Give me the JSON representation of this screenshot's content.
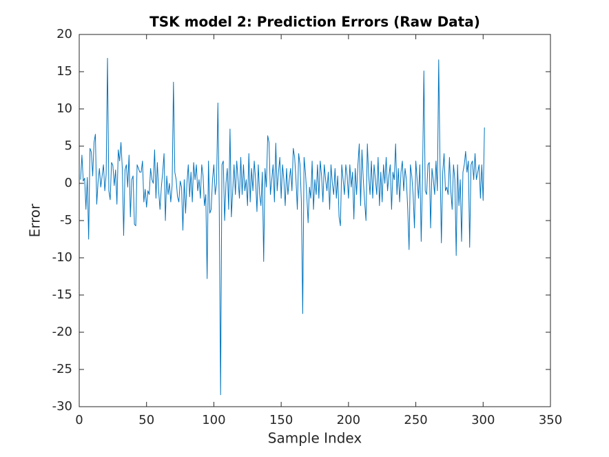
{
  "chart_data": {
    "type": "line",
    "title": "TSK model 2: Prediction Errors (Raw Data)",
    "x_label": "Sample Index",
    "y_label": "Error",
    "color": "#0072bd",
    "x": [
      1,
      2,
      3,
      4,
      5,
      6,
      7,
      8,
      9,
      10,
      11,
      12,
      13,
      14,
      15,
      16,
      17,
      18,
      19,
      20,
      21,
      22,
      23,
      24,
      25,
      26,
      27,
      28,
      29,
      30,
      31,
      32,
      33,
      34,
      35,
      36,
      37,
      38,
      39,
      40,
      41,
      42,
      43,
      44,
      45,
      46,
      47,
      48,
      49,
      50,
      51,
      52,
      53,
      54,
      55,
      56,
      57,
      58,
      59,
      60,
      61,
      62,
      63,
      64,
      65,
      66,
      67,
      68,
      69,
      70,
      71,
      72,
      73,
      74,
      75,
      76,
      77,
      78,
      79,
      80,
      81,
      82,
      83,
      84,
      85,
      86,
      87,
      88,
      89,
      90,
      91,
      92,
      93,
      94,
      95,
      96,
      97,
      98,
      99,
      100,
      101,
      102,
      103,
      104,
      105,
      106,
      107,
      108,
      109,
      110,
      111,
      112,
      113,
      114,
      115,
      116,
      117,
      118,
      119,
      120,
      121,
      122,
      123,
      124,
      125,
      126,
      127,
      128,
      129,
      130,
      131,
      132,
      133,
      134,
      135,
      136,
      137,
      138,
      139,
      140,
      141,
      142,
      143,
      144,
      145,
      146,
      147,
      148,
      149,
      150,
      151,
      152,
      153,
      154,
      155,
      156,
      157,
      158,
      159,
      160,
      161,
      162,
      163,
      164,
      165,
      166,
      167,
      168,
      169,
      170,
      171,
      172,
      173,
      174,
      175,
      176,
      177,
      178,
      179,
      180,
      181,
      182,
      183,
      184,
      185,
      186,
      187,
      188,
      189,
      190,
      191,
      192,
      193,
      194,
      195,
      196,
      197,
      198,
      199,
      200,
      201,
      202,
      203,
      204,
      205,
      206,
      207,
      208,
      209,
      210,
      211,
      212,
      213,
      214,
      215,
      216,
      217,
      218,
      219,
      220,
      221,
      222,
      223,
      224,
      225,
      226,
      227,
      228,
      229,
      230,
      231,
      232,
      233,
      234,
      235,
      236,
      237,
      238,
      239,
      240,
      241,
      242,
      243,
      244,
      245,
      246,
      247,
      248,
      249,
      250,
      251,
      252,
      253,
      254,
      255,
      256,
      257,
      258,
      259,
      260,
      261,
      262,
      263,
      264,
      265,
      266,
      267,
      268,
      269,
      270,
      271,
      272,
      273,
      274,
      275,
      276,
      277,
      278,
      279,
      280,
      281,
      282,
      283,
      284,
      285,
      286,
      287,
      288,
      289,
      290,
      291,
      292,
      293,
      294,
      295,
      296,
      297,
      298,
      299,
      300,
      301
    ],
    "values": [
      0.5,
      3.8,
      0.3,
      0.7,
      -3.5,
      0.8,
      -7.5,
      4.7,
      4.2,
      1.0,
      5.5,
      6.6,
      -2.8,
      0.2,
      2.0,
      -0.5,
      1.0,
      2.5,
      -1.0,
      1.2,
      16.8,
      -1.0,
      -2.2,
      2.8,
      2.4,
      -0.3,
      1.8,
      -2.8,
      4.5,
      3.0,
      5.5,
      2.0,
      -7.0,
      1.8,
      2.5,
      -0.5,
      3.8,
      -4.5,
      0.5,
      1.0,
      -5.5,
      -5.7,
      2.5,
      2.0,
      1.5,
      1.5,
      3.0,
      -2.5,
      -0.8,
      -3.2,
      -1.0,
      -1.5,
      2.0,
      0.5,
      0.0,
      4.5,
      -2.0,
      2.8,
      -1.0,
      -3.5,
      -0.5,
      1.5,
      4.0,
      -5.0,
      1.0,
      -1.5,
      0.0,
      -2.5,
      -0.3,
      13.6,
      1.5,
      0.5,
      -1.8,
      -2.5,
      0.3,
      -0.5,
      -6.3,
      0.5,
      -4.0,
      0.0,
      2.5,
      -1.8,
      1.5,
      -2.5,
      2.8,
      0.5,
      2.5,
      -1.0,
      0.5,
      -2.0,
      2.5,
      1.0,
      -3.0,
      -1.5,
      -12.8,
      3.0,
      -4.0,
      -3.5,
      0.5,
      2.5,
      -1.5,
      0.0,
      10.8,
      -3.0,
      -28.4,
      2.5,
      3.0,
      -5.0,
      0.0,
      2.0,
      -3.5,
      7.3,
      -4.5,
      -1.0,
      2.5,
      -1.5,
      3.0,
      0.5,
      -2.0,
      3.5,
      -1.5,
      2.5,
      -1.0,
      0.5,
      -3.0,
      4.0,
      -2.5,
      2.0,
      -1.0,
      3.0,
      0.5,
      -3.8,
      2.5,
      -1.5,
      -3.0,
      1.5,
      -10.5,
      2.0,
      -0.5,
      6.4,
      5.5,
      -1.5,
      0.5,
      2.5,
      -2.5,
      5.4,
      -1.0,
      1.5,
      3.5,
      -2.0,
      2.5,
      0.5,
      -3.0,
      2.0,
      -1.5,
      0.5,
      2.0,
      -1.0,
      4.7,
      3.5,
      0.5,
      -3.5,
      4.0,
      2.5,
      -2.5,
      -17.5,
      3.5,
      1.5,
      -1.5,
      -5.3,
      -0.5,
      -2.0,
      3.0,
      -3.5,
      0.5,
      -1.5,
      2.5,
      -2.0,
      3.0,
      1.0,
      -2.5,
      2.5,
      0.5,
      -1.0,
      1.5,
      -3.5,
      2.5,
      0.0,
      -1.5,
      2.0,
      -2.0,
      1.0,
      -4.5,
      -5.7,
      2.5,
      0.5,
      -1.5,
      2.5,
      1.0,
      -2.0,
      2.5,
      -0.5,
      1.5,
      -4.8,
      2.0,
      -1.5,
      2.5,
      5.3,
      -3.0,
      4.5,
      0.5,
      -2.5,
      -5.0,
      5.3,
      1.0,
      -1.5,
      3.0,
      -2.0,
      2.5,
      0.5,
      -1.5,
      3.5,
      -3.0,
      1.5,
      -2.5,
      2.5,
      0.0,
      3.5,
      -1.0,
      1.0,
      2.5,
      -3.5,
      1.5,
      0.5,
      5.3,
      -1.5,
      2.0,
      -2.5,
      1.5,
      3.0,
      -1.0,
      2.0,
      0.5,
      -3.5,
      -8.9,
      2.5,
      1.0,
      -1.5,
      -6.0,
      3.0,
      0.5,
      -2.0,
      2.5,
      -7.8,
      1.0,
      15.1,
      -1.0,
      -1.5,
      2.5,
      2.8,
      -6.0,
      2.0,
      0.5,
      -1.5,
      3.0,
      -1.0,
      16.6,
      2.5,
      -8.0,
      1.5,
      4.0,
      -1.0,
      -0.5,
      -1.5,
      3.5,
      -1.0,
      -3.5,
      2.5,
      0.5,
      -9.7,
      2.5,
      -3.0,
      0.5,
      -7.8,
      1.5,
      2.5,
      4.3,
      1.5,
      3.0,
      -8.6,
      2.5,
      3.0,
      0.5,
      4.0,
      0.5,
      1.5,
      2.5,
      -2.0,
      2.5,
      -2.3,
      7.5
    ],
    "xlim": [
      0,
      350
    ],
    "xticks": [
      0,
      50,
      100,
      150,
      200,
      250,
      300,
      350
    ],
    "ylim": [
      -30,
      20
    ],
    "yticks": [
      -30,
      -25,
      -20,
      -15,
      -10,
      -5,
      0,
      5,
      10,
      15,
      20
    ]
  }
}
